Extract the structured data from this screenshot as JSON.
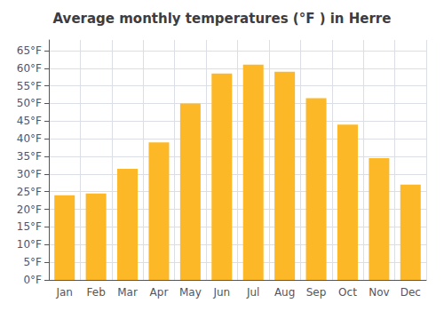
{
  "chart_data": {
    "type": "bar",
    "title": "Average monthly temperatures (°F ) in Herre",
    "categories": [
      "Jan",
      "Feb",
      "Mar",
      "Apr",
      "May",
      "Jun",
      "Jul",
      "Aug",
      "Sep",
      "Oct",
      "Nov",
      "Dec"
    ],
    "values": [
      24,
      24.5,
      31.5,
      39,
      50,
      58.5,
      61,
      59,
      51.5,
      44,
      34.5,
      27
    ],
    "color": "#FDB827",
    "ylim": [
      0,
      68
    ],
    "yticks": [
      {
        "value": 0,
        "label": "0°F"
      },
      {
        "value": 5,
        "label": "5°F"
      },
      {
        "value": 10,
        "label": "10°F"
      },
      {
        "value": 15,
        "label": "15°F"
      },
      {
        "value": 20,
        "label": "20°F"
      },
      {
        "value": 25,
        "label": "25°F"
      },
      {
        "value": 30,
        "label": "30°F"
      },
      {
        "value": 35,
        "label": "35°F"
      },
      {
        "value": 40,
        "label": "40°F"
      },
      {
        "value": 45,
        "label": "45°F"
      },
      {
        "value": 50,
        "label": "50°F"
      },
      {
        "value": 55,
        "label": "55°F"
      },
      {
        "value": 60,
        "label": "60°F"
      },
      {
        "value": 65,
        "label": "65°F"
      }
    ],
    "grid": true
  }
}
